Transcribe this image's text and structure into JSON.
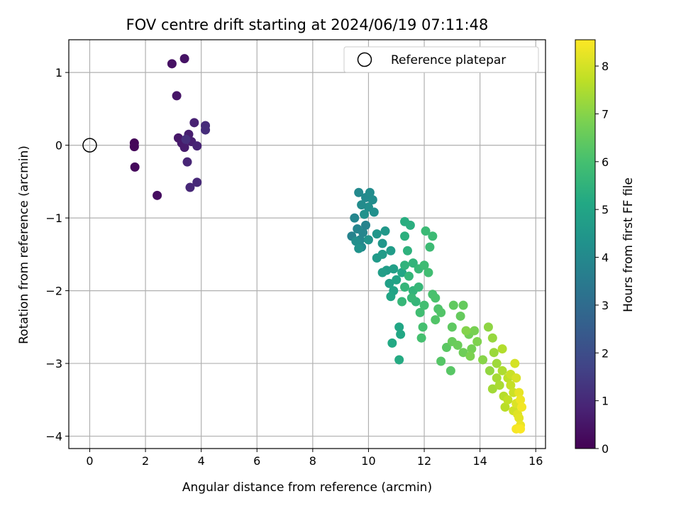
{
  "chart_data": {
    "type": "scatter",
    "title": "FOV centre drift starting at 2024/06/19 07:11:48",
    "xlabel": "Angular distance from reference (arcmin)",
    "ylabel": "Rotation from reference (arcmin)",
    "xlim": [
      -0.75,
      16.35
    ],
    "ylim": [
      -4.17,
      1.45
    ],
    "xticks": [
      0,
      2,
      4,
      6,
      8,
      10,
      12,
      14,
      16
    ],
    "yticks": [
      -4,
      -3,
      -2,
      -1,
      0,
      1
    ],
    "xtick_labels": [
      "0",
      "2",
      "4",
      "6",
      "8",
      "10",
      "12",
      "14",
      "16"
    ],
    "ytick_labels": [
      "−4",
      "−3",
      "−2",
      "−1",
      "0",
      "1"
    ],
    "grid": true,
    "legend": {
      "position": "top-right",
      "entries": [
        {
          "label": "Reference platepar",
          "marker": "open-circle"
        }
      ]
    },
    "reference_point": {
      "x": 0,
      "y": 0
    },
    "colorbar": {
      "label": "Hours from first FF file",
      "colormap": "viridis",
      "range": [
        0,
        8.55
      ],
      "ticks": [
        0,
        1,
        2,
        3,
        4,
        5,
        6,
        7,
        8
      ],
      "tick_labels": [
        "0",
        "1",
        "2",
        "3",
        "4",
        "5",
        "6",
        "7",
        "8"
      ]
    },
    "series": [
      {
        "points": [
          [
            1.6,
            0.03,
            0.1
          ],
          [
            1.6,
            -0.02,
            0.15
          ],
          [
            1.62,
            -0.3,
            0.2
          ],
          [
            2.42,
            -0.69,
            0.3
          ],
          [
            2.95,
            1.12,
            0.4
          ],
          [
            3.4,
            1.19,
            0.45
          ],
          [
            3.12,
            0.68,
            0.5
          ],
          [
            3.18,
            0.1,
            0.55
          ],
          [
            3.3,
            0.03,
            0.6
          ],
          [
            3.4,
            -0.03,
            0.65
          ],
          [
            3.55,
            0.15,
            0.7
          ],
          [
            3.65,
            0.05,
            0.75
          ],
          [
            3.75,
            0.31,
            0.8
          ],
          [
            3.85,
            -0.01,
            0.85
          ],
          [
            3.5,
            -0.23,
            0.9
          ],
          [
            3.6,
            -0.58,
            0.95
          ],
          [
            3.85,
            -0.51,
            1.0
          ],
          [
            4.15,
            0.27,
            1.05
          ],
          [
            4.15,
            0.21,
            1.1
          ],
          [
            3.45,
            0.08,
            1.15
          ],
          [
            9.4,
            -1.25,
            3.8
          ],
          [
            9.5,
            -1.0,
            3.9
          ],
          [
            9.6,
            -1.15,
            3.85
          ],
          [
            9.7,
            -1.3,
            3.95
          ],
          [
            9.75,
            -1.4,
            4.0
          ],
          [
            9.8,
            -1.2,
            3.9
          ],
          [
            9.9,
            -1.1,
            3.8
          ],
          [
            9.65,
            -0.65,
            4.0
          ],
          [
            9.9,
            -0.72,
            4.05
          ],
          [
            10.05,
            -0.65,
            4.1
          ],
          [
            10.15,
            -0.75,
            4.15
          ],
          [
            10.0,
            -0.85,
            4.2
          ],
          [
            9.75,
            -0.82,
            4.1
          ],
          [
            10.2,
            -0.92,
            4.25
          ],
          [
            9.85,
            -0.95,
            4.3
          ],
          [
            9.55,
            -1.32,
            4.2
          ],
          [
            9.65,
            -1.42,
            4.35
          ],
          [
            10.0,
            -1.3,
            4.4
          ],
          [
            10.3,
            -1.22,
            4.45
          ],
          [
            10.5,
            -1.35,
            4.5
          ],
          [
            10.6,
            -1.18,
            4.55
          ],
          [
            10.3,
            -1.55,
            4.6
          ],
          [
            10.5,
            -1.5,
            4.65
          ],
          [
            10.8,
            -1.45,
            4.7
          ],
          [
            10.65,
            -1.72,
            4.7
          ],
          [
            10.5,
            -1.75,
            4.75
          ],
          [
            10.9,
            -1.7,
            4.8
          ],
          [
            10.75,
            -1.9,
            4.85
          ],
          [
            10.9,
            -2.0,
            4.9
          ],
          [
            11.0,
            -1.85,
            4.95
          ],
          [
            11.2,
            -1.75,
            5.0
          ],
          [
            10.8,
            -2.08,
            5.0
          ],
          [
            11.1,
            -2.5,
            5.05
          ],
          [
            11.15,
            -2.6,
            5.1
          ],
          [
            10.85,
            -2.72,
            5.15
          ],
          [
            11.1,
            -2.95,
            5.2
          ],
          [
            11.3,
            -1.05,
            5.3
          ],
          [
            11.5,
            -1.1,
            5.35
          ],
          [
            11.3,
            -1.25,
            5.4
          ],
          [
            11.4,
            -1.45,
            5.45
          ],
          [
            11.3,
            -1.65,
            5.5
          ],
          [
            11.6,
            -1.62,
            5.55
          ],
          [
            11.45,
            -1.8,
            5.6
          ],
          [
            11.6,
            -2.0,
            5.55
          ],
          [
            11.7,
            -2.15,
            5.6
          ],
          [
            11.8,
            -1.95,
            5.65
          ],
          [
            11.3,
            -1.95,
            5.6
          ],
          [
            11.2,
            -2.15,
            5.65
          ],
          [
            11.55,
            -2.1,
            5.7
          ],
          [
            11.8,
            -1.7,
            5.7
          ],
          [
            12.05,
            -1.18,
            5.75
          ],
          [
            12.3,
            -1.25,
            5.8
          ],
          [
            12.2,
            -1.4,
            5.8
          ],
          [
            12.0,
            -1.65,
            5.85
          ],
          [
            12.15,
            -1.75,
            5.9
          ],
          [
            11.85,
            -2.3,
            5.9
          ],
          [
            12.0,
            -2.2,
            5.95
          ],
          [
            11.95,
            -2.5,
            6.0
          ],
          [
            11.9,
            -2.65,
            6.0
          ],
          [
            12.3,
            -2.05,
            6.05
          ],
          [
            12.4,
            -2.1,
            6.1
          ],
          [
            12.5,
            -2.25,
            6.15
          ],
          [
            12.6,
            -2.3,
            6.2
          ],
          [
            12.4,
            -2.4,
            6.2
          ],
          [
            12.6,
            -2.97,
            6.25
          ],
          [
            12.95,
            -3.1,
            6.3
          ],
          [
            12.8,
            -2.78,
            6.35
          ],
          [
            13.0,
            -2.5,
            6.4
          ],
          [
            13.05,
            -2.2,
            6.45
          ],
          [
            13.3,
            -2.35,
            6.5
          ],
          [
            13.4,
            -2.2,
            6.5
          ],
          [
            13.0,
            -2.7,
            6.55
          ],
          [
            13.2,
            -2.75,
            6.6
          ],
          [
            13.4,
            -2.85,
            6.65
          ],
          [
            13.6,
            -2.6,
            6.7
          ],
          [
            13.7,
            -2.8,
            6.75
          ],
          [
            13.8,
            -2.55,
            6.8
          ],
          [
            13.65,
            -2.9,
            6.85
          ],
          [
            13.9,
            -2.7,
            6.9
          ],
          [
            13.5,
            -2.55,
            6.95
          ],
          [
            14.1,
            -2.95,
            7.0
          ],
          [
            14.3,
            -2.5,
            7.1
          ],
          [
            14.35,
            -3.1,
            7.15
          ],
          [
            14.45,
            -2.65,
            7.2
          ],
          [
            14.5,
            -2.85,
            7.25
          ],
          [
            14.6,
            -3.0,
            7.3
          ],
          [
            14.45,
            -3.35,
            7.35
          ],
          [
            14.6,
            -3.2,
            7.4
          ],
          [
            14.7,
            -3.3,
            7.45
          ],
          [
            14.8,
            -3.1,
            7.5
          ],
          [
            14.8,
            -2.8,
            7.55
          ],
          [
            14.85,
            -3.45,
            7.6
          ],
          [
            14.9,
            -3.6,
            7.65
          ],
          [
            15.0,
            -3.2,
            7.7
          ],
          [
            15.0,
            -3.5,
            7.75
          ],
          [
            15.1,
            -3.3,
            7.8
          ],
          [
            15.1,
            -3.15,
            7.85
          ],
          [
            15.2,
            -3.4,
            7.9
          ],
          [
            15.2,
            -3.65,
            7.95
          ],
          [
            15.25,
            -3.0,
            8.0
          ],
          [
            15.3,
            -3.2,
            8.05
          ],
          [
            15.3,
            -3.55,
            8.1
          ],
          [
            15.35,
            -3.7,
            8.15
          ],
          [
            15.4,
            -3.75,
            8.2
          ],
          [
            15.4,
            -3.4,
            8.25
          ],
          [
            15.45,
            -3.85,
            8.3
          ],
          [
            15.45,
            -3.5,
            8.35
          ],
          [
            15.5,
            -3.6,
            8.4
          ],
          [
            15.3,
            -3.9,
            8.45
          ],
          [
            15.45,
            -3.9,
            8.5
          ]
        ]
      }
    ]
  }
}
